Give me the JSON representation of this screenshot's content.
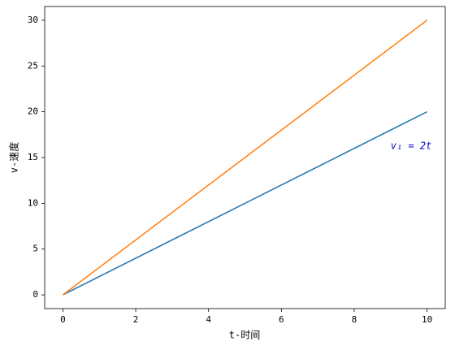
{
  "chart_data": {
    "type": "line",
    "xlabel": "t-时间",
    "ylabel": "v-速度",
    "x": [
      0,
      10
    ],
    "series": [
      {
        "color": "#1f77b4",
        "values": [
          0,
          20
        ]
      },
      {
        "color": "#ff7f0e",
        "values": [
          0,
          30
        ]
      }
    ],
    "annotation": {
      "text": "v₁ = 2t",
      "color": "#0000cc"
    },
    "xlim": [
      -0.5,
      10.5
    ],
    "ylim": [
      -1.5,
      31.5
    ],
    "xticks": [
      0,
      2,
      4,
      6,
      8,
      10
    ],
    "yticks": [
      0,
      5,
      10,
      15,
      20,
      25,
      30
    ],
    "grid": false
  }
}
